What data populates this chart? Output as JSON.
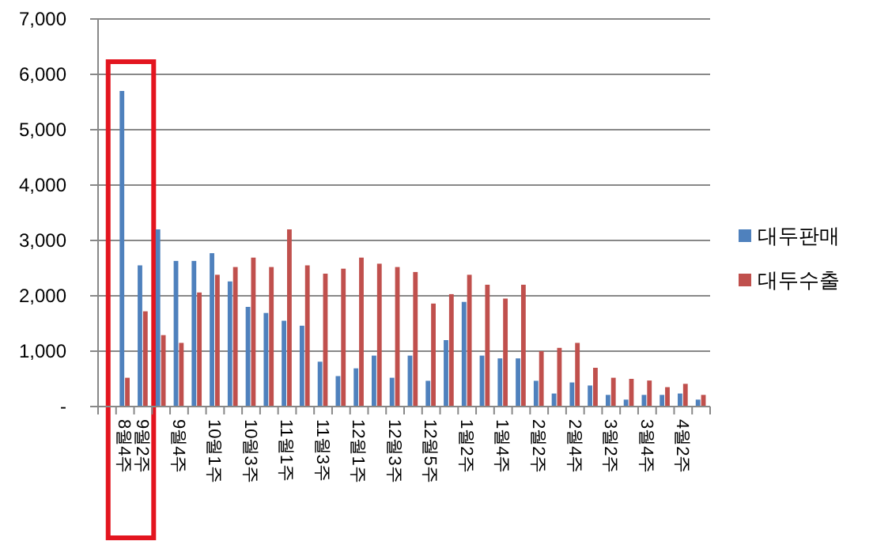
{
  "chart_data": {
    "type": "bar",
    "categories": [
      null,
      "8월4주",
      "9월2주",
      null,
      "9월4주",
      null,
      "10월1주",
      null,
      "10월3주",
      null,
      "11월1주",
      null,
      "11월3주",
      null,
      "12월1주",
      null,
      "12월3주",
      null,
      "12월5주",
      null,
      "1월2주",
      null,
      "1월4주",
      null,
      "2월2주",
      null,
      "2월4주",
      null,
      "3월2주",
      null,
      "3월4주",
      null,
      "4월2주",
      null
    ],
    "series": [
      {
        "name": "대두판매",
        "color": "#4f81bd",
        "values": [
          null,
          5700,
          2550,
          3200,
          2630,
          2630,
          2770,
          2260,
          1800,
          1690,
          1550,
          1460,
          810,
          550,
          690,
          920,
          520,
          920,
          465,
          1200,
          1890,
          920,
          870,
          870,
          465,
          235,
          435,
          380,
          210,
          125,
          210,
          210,
          235,
          125
        ]
      },
      {
        "name": "대두수출",
        "color": "#c0504d",
        "values": [
          null,
          520,
          1720,
          1290,
          1150,
          2060,
          2380,
          2520,
          2690,
          2520,
          3200,
          2550,
          2400,
          2490,
          2690,
          2580,
          2520,
          2430,
          1860,
          2030,
          2380,
          2200,
          1950,
          2200,
          1000,
          1060,
          1150,
          700,
          520,
          500,
          470,
          350,
          410,
          210
        ]
      }
    ],
    "ylim": [
      0,
      7000
    ],
    "yticks": [
      {
        "value": 0,
        "label": "-"
      },
      {
        "value": 1000,
        "label": "1,000"
      },
      {
        "value": 2000,
        "label": "2,000"
      },
      {
        "value": 3000,
        "label": "3,000"
      },
      {
        "value": 4000,
        "label": "4,000"
      },
      {
        "value": 5000,
        "label": "5,000"
      },
      {
        "value": 6000,
        "label": "6,000"
      },
      {
        "value": 7000,
        "label": "7,000"
      }
    ],
    "grid": "y",
    "legend": "right"
  }
}
